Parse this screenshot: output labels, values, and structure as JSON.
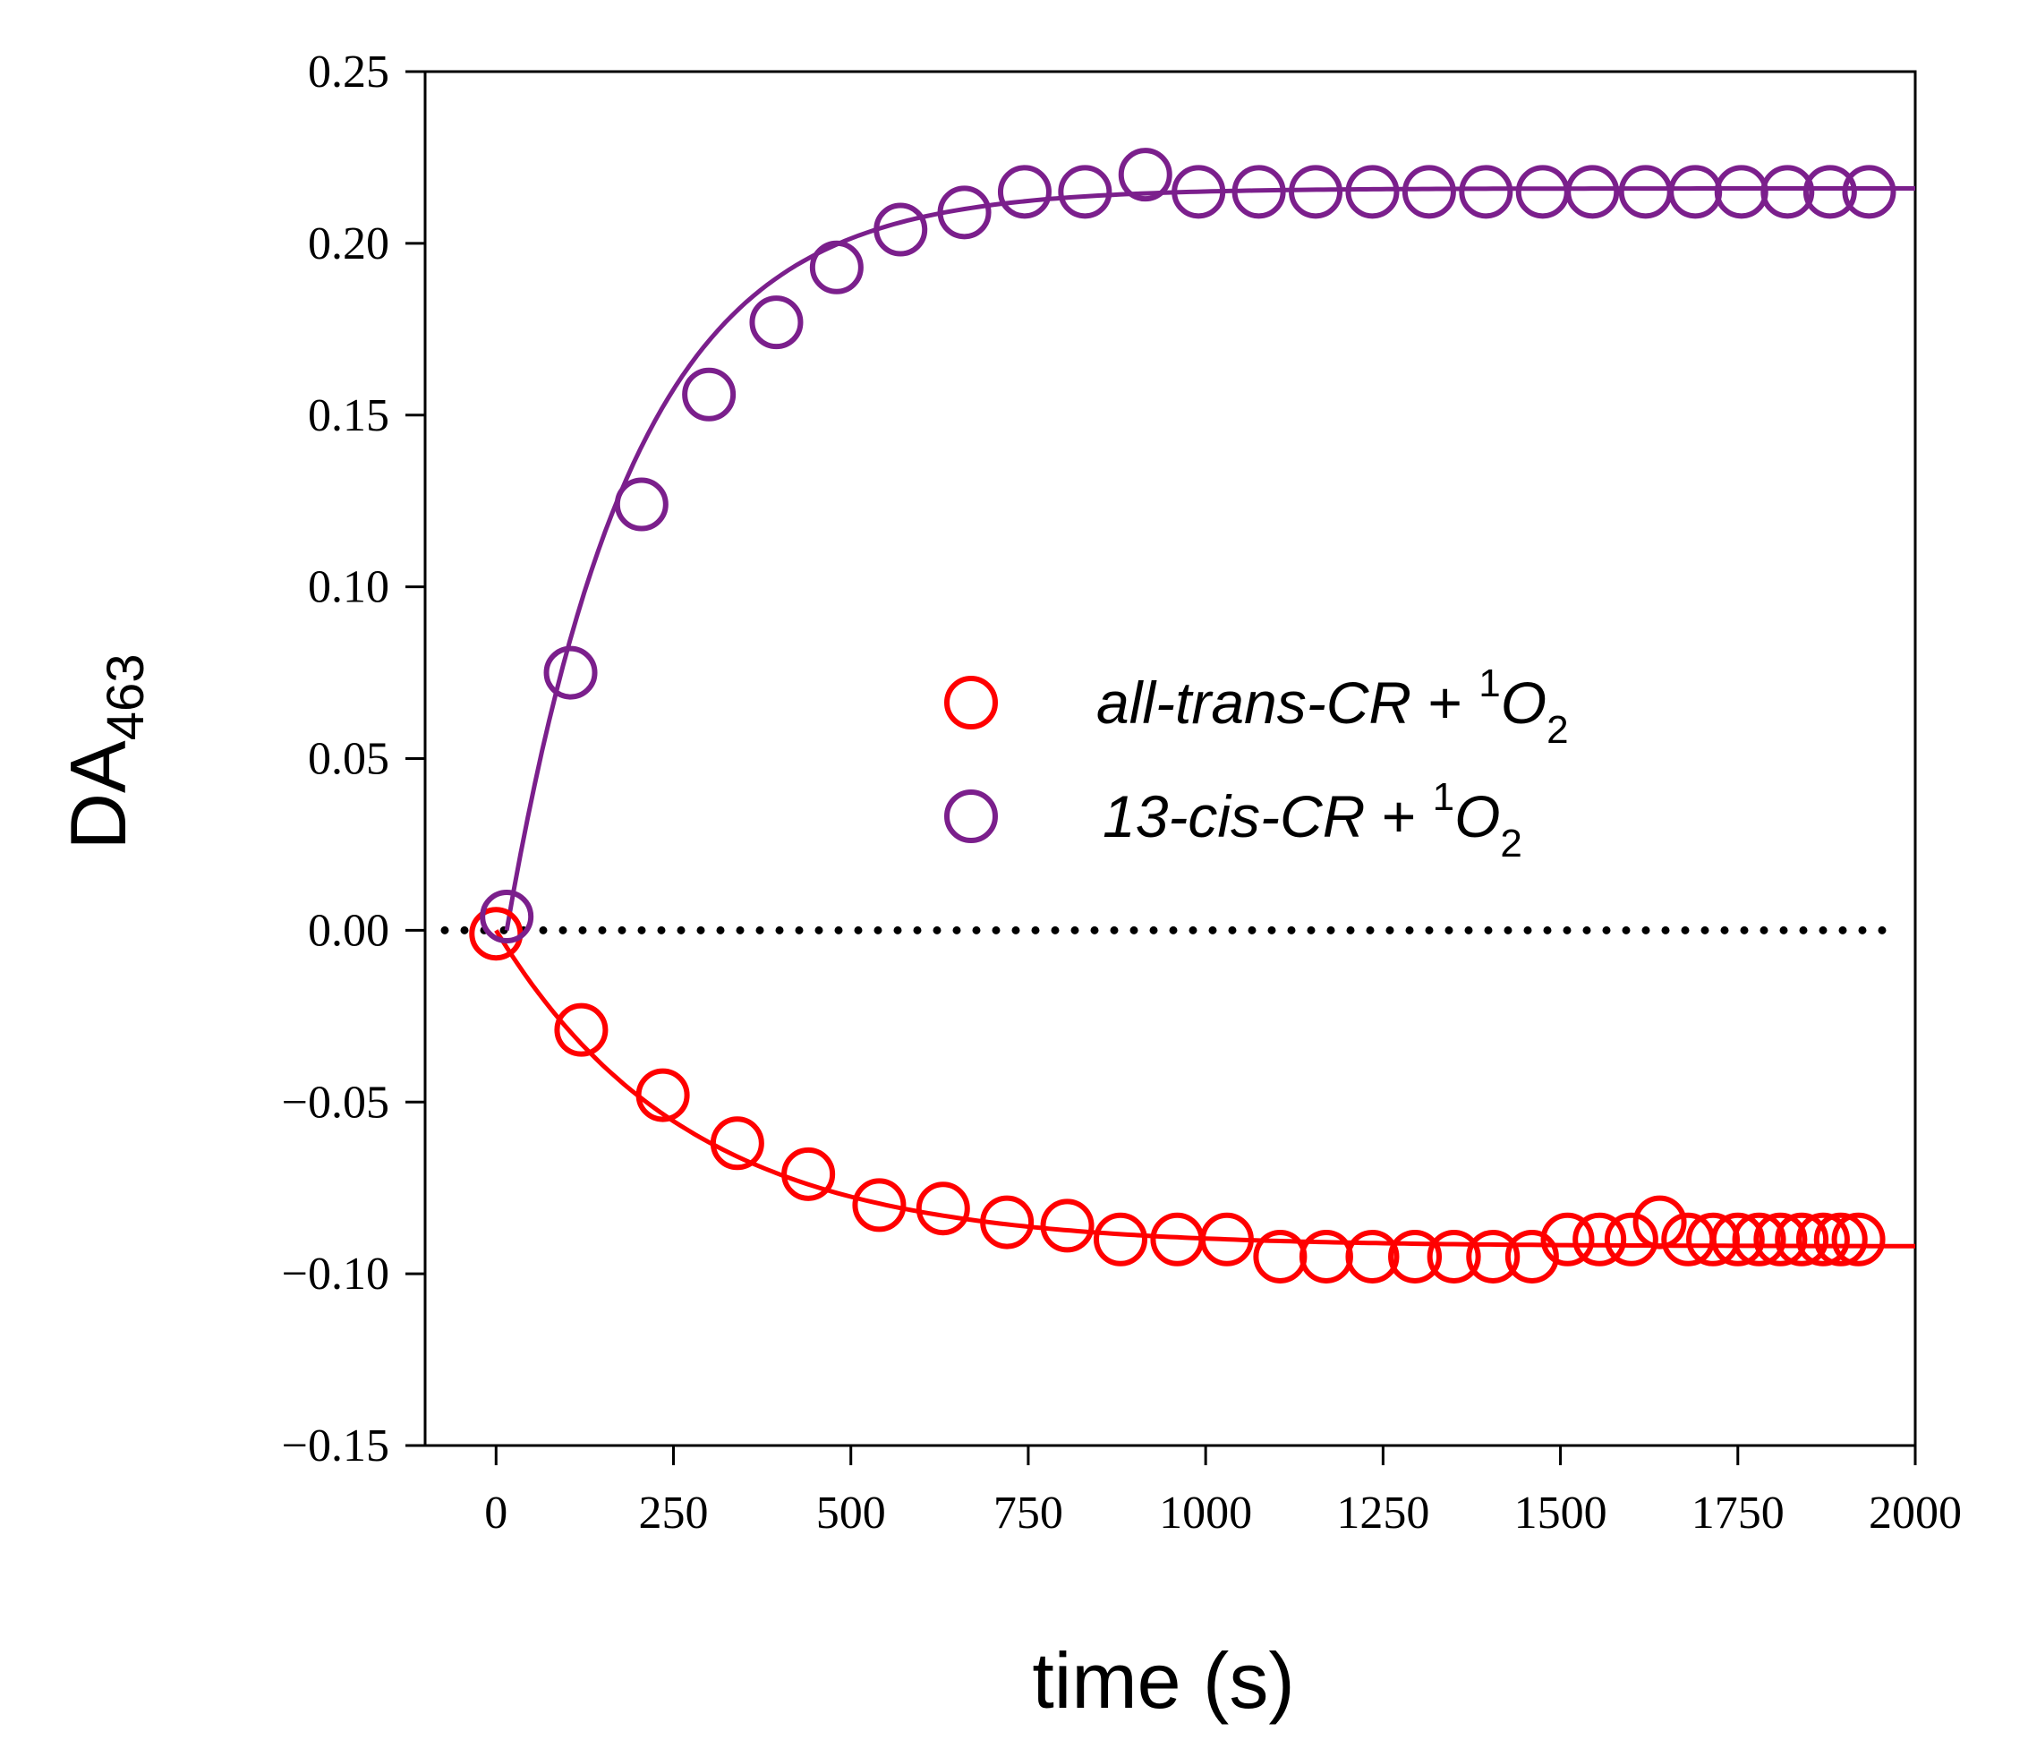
{
  "chart_data": {
    "type": "scatter",
    "xlabel": "time (s)",
    "ylabel": {
      "main": "DA",
      "subscript": "463"
    },
    "xlim": [
      -100,
      2000
    ],
    "ylim": [
      -0.15,
      0.25
    ],
    "x_ticks": [
      0,
      250,
      500,
      750,
      1000,
      1250,
      1500,
      1750,
      2000
    ],
    "y_ticks": [
      -0.15,
      -0.1,
      -0.05,
      0.0,
      0.05,
      0.1,
      0.15,
      0.2,
      0.25
    ],
    "x_tick_labels": [
      "0",
      "250",
      "500",
      "750",
      "1000",
      "1250",
      "1500",
      "1750",
      "2000"
    ],
    "y_tick_labels": [
      "−0.15",
      "−0.10",
      "−0.05",
      "0.00",
      "0.05",
      "0.10",
      "0.15",
      "0.20",
      "0.25"
    ],
    "grid": false,
    "legend_position": "right-center",
    "zero_line": {
      "y": 0,
      "style": "dotted",
      "color": "#000000"
    },
    "series": [
      {
        "name_parts": {
          "italic": "all-trans-CR",
          "plus": " + ",
          "sup": "1",
          "base": "O",
          "sub": "2"
        },
        "color": "#ff0000",
        "marker": "open-circle",
        "x": [
          0,
          120,
          235,
          340,
          440,
          540,
          630,
          720,
          805,
          880,
          960,
          1030,
          1105,
          1170,
          1235,
          1295,
          1350,
          1405,
          1460,
          1510,
          1555,
          1600,
          1640,
          1680,
          1715,
          1750,
          1780,
          1810,
          1840,
          1870,
          1895,
          1920
        ],
        "y": [
          -0.001,
          -0.029,
          -0.048,
          -0.062,
          -0.071,
          -0.08,
          -0.081,
          -0.085,
          -0.086,
          -0.09,
          -0.09,
          -0.09,
          -0.095,
          -0.095,
          -0.095,
          -0.095,
          -0.095,
          -0.095,
          -0.095,
          -0.09,
          -0.09,
          -0.09,
          -0.085,
          -0.09,
          -0.09,
          -0.09,
          -0.09,
          -0.09,
          -0.09,
          -0.09,
          -0.09,
          -0.09
        ],
        "fit": {
          "model": "exponential",
          "A": -0.092,
          "tau": 270,
          "x_start": 0,
          "x_end": 2000
        }
      },
      {
        "name_parts": {
          "italic": "13-cis-CR",
          "plus": " + ",
          "sup": "1",
          "base": "O",
          "sub": "2"
        },
        "color": "#7b1f8c",
        "marker": "open-circle",
        "x": [
          15,
          105,
          205,
          300,
          395,
          480,
          570,
          660,
          745,
          830,
          915,
          990,
          1075,
          1155,
          1235,
          1315,
          1395,
          1475,
          1545,
          1620,
          1690,
          1755,
          1820,
          1880,
          1935
        ],
        "y": [
          0.004,
          0.075,
          0.124,
          0.156,
          0.177,
          0.193,
          0.204,
          0.209,
          0.215,
          0.215,
          0.22,
          0.215,
          0.215,
          0.215,
          0.215,
          0.215,
          0.215,
          0.215,
          0.215,
          0.215,
          0.215,
          0.215,
          0.215,
          0.215,
          0.215
        ],
        "fit": {
          "model": "exponential",
          "A": 0.216,
          "tau": 180,
          "x_start": 15,
          "x_end": 2000
        }
      }
    ]
  }
}
